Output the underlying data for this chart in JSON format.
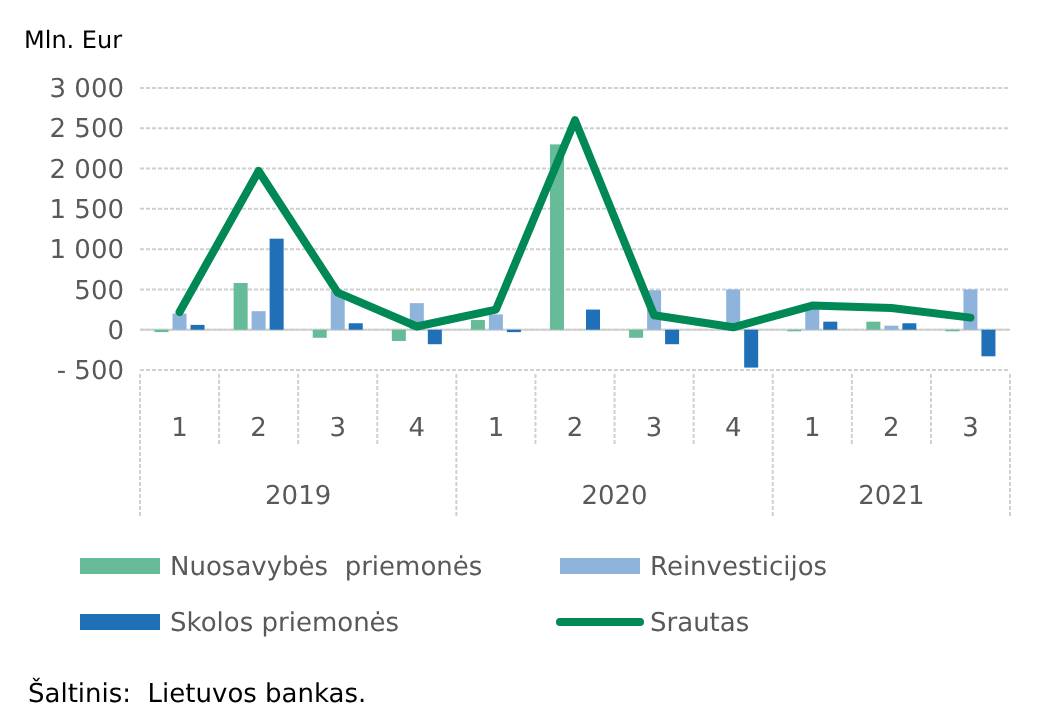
{
  "chart_data": {
    "type": "bar",
    "ylabel": "Mln. Eur",
    "categories": [
      "1",
      "2",
      "3",
      "4",
      "1",
      "2",
      "3",
      "4",
      "1",
      "2",
      "3"
    ],
    "series": [
      {
        "name": "Nuosavybės  priemonės",
        "color": "#66bb99",
        "values": [
          -30,
          580,
          -100,
          -140,
          120,
          2300,
          -100,
          0,
          -20,
          100,
          -20
        ]
      },
      {
        "name": "Reinvesticijos",
        "color": "#8fb4dc",
        "values": [
          200,
          230,
          480,
          330,
          190,
          null,
          490,
          500,
          300,
          50,
          500
        ]
      },
      {
        "name": "Skolos priemonės",
        "color": "#2070b8",
        "values": [
          60,
          1130,
          80,
          -180,
          -30,
          250,
          -180,
          -470,
          100,
          80,
          -330
        ]
      },
      {
        "name": "Srautas",
        "type": "line",
        "color": "#008855",
        "values": [
          220,
          1970,
          460,
          40,
          250,
          2600,
          180,
          30,
          300,
          270,
          150
        ]
      }
    ],
    "ylim": [
      -500,
      3000
    ],
    "yticks": [
      {
        "value": -500,
        "label": "- 500"
      },
      0,
      500,
      {
        "value": 1000,
        "label": "1 000"
      },
      {
        "value": 1500,
        "label": "1 500"
      },
      {
        "value": 2000,
        "label": "2 000"
      },
      {
        "value": 2500,
        "label": "2 500"
      },
      {
        "value": 3000,
        "label": "3 000"
      }
    ],
    "grid": "y",
    "legend": "bottom",
    "annotations": [
      "2019",
      "2020",
      "2021",
      "Šaltinis:  Lietuvos bankas."
    ]
  }
}
